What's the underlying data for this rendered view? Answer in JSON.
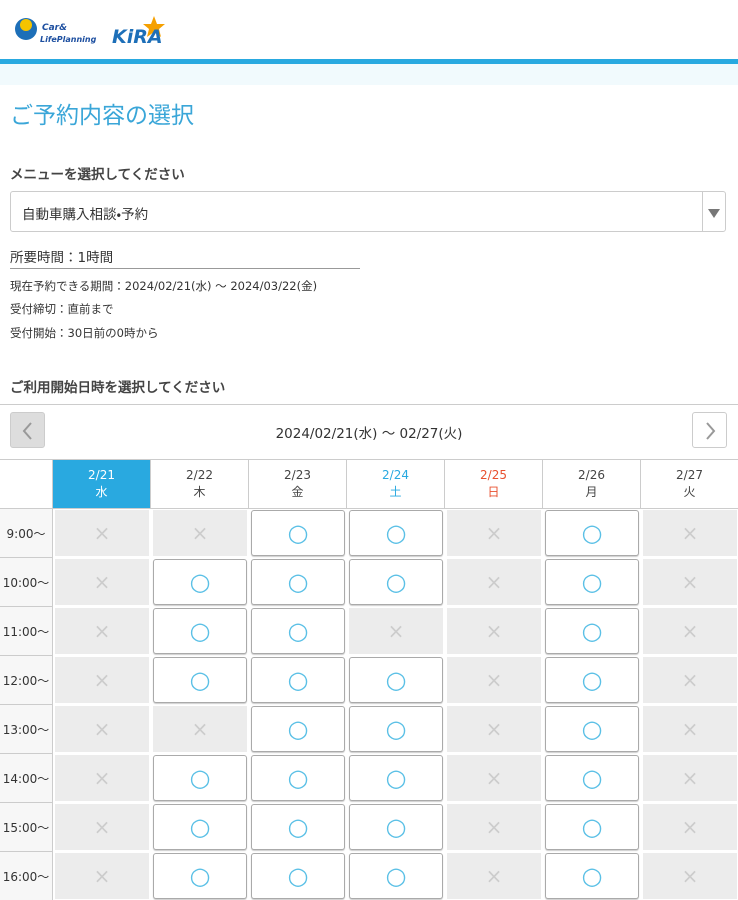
{
  "logo": {
    "line1": "Car&",
    "line2": "LifePlanning",
    "brand": "KiRA"
  },
  "title": "ご予約内容の選択",
  "menu_label": "メニューを選択してください",
  "menu_selected": "自動車購入相談・予約",
  "duration": "所要時間：1時間",
  "period": "現在予約できる期間：2024/02/21(水) 〜 2024/03/22(金)",
  "deadline": "受付締切：直前まで",
  "start": "受付開始：30日前の0時から",
  "calendar_label": "ご利用開始日時を選択してください",
  "range": "2024/02/21(水) 〜 02/27(火)",
  "days": [
    {
      "date": "2/21",
      "weekday": "水"
    },
    {
      "date": "2/22",
      "weekday": "木"
    },
    {
      "date": "2/23",
      "weekday": "金"
    },
    {
      "date": "2/24",
      "weekday": "土"
    },
    {
      "date": "2/25",
      "weekday": "日"
    },
    {
      "date": "2/26",
      "weekday": "月"
    },
    {
      "date": "2/27",
      "weekday": "火"
    }
  ],
  "times": [
    "9:00〜",
    "10:00〜",
    "11:00〜",
    "12:00〜",
    "13:00〜",
    "14:00〜",
    "15:00〜",
    "16:00〜"
  ],
  "slots": [
    [
      "×",
      "×",
      "○",
      "○",
      "×",
      "○",
      "×"
    ],
    [
      "×",
      "○",
      "○",
      "○",
      "×",
      "○",
      "×"
    ],
    [
      "×",
      "○",
      "○",
      "×",
      "×",
      "○",
      "×"
    ],
    [
      "×",
      "○",
      "○",
      "○",
      "×",
      "○",
      "×"
    ],
    [
      "×",
      "×",
      "○",
      "○",
      "×",
      "○",
      "×"
    ],
    [
      "×",
      "○",
      "○",
      "○",
      "×",
      "○",
      "×"
    ],
    [
      "×",
      "○",
      "○",
      "○",
      "×",
      "○",
      "×"
    ],
    [
      "×",
      "○",
      "○",
      "○",
      "×",
      "○",
      "×"
    ]
  ]
}
